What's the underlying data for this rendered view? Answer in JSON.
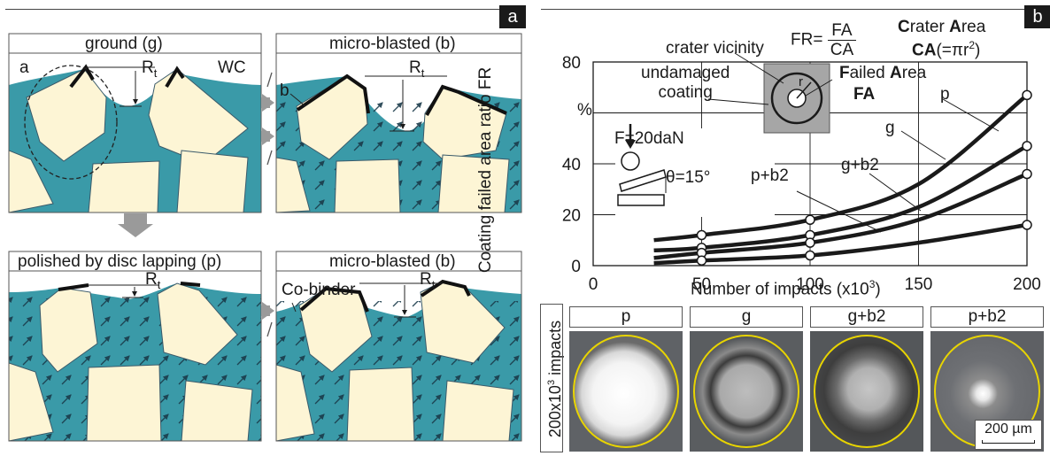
{
  "panel_a": {
    "letter": "a",
    "sub1": {
      "title": "ground (g)",
      "label_a": "a",
      "label_rt": "R",
      "label_rt_sub": "t",
      "label_wc": "WC"
    },
    "sub2": {
      "title": "micro-blasted (b)",
      "label_b": "b",
      "label_rt": "R",
      "label_rt_sub": "t"
    },
    "sub3": {
      "title": "polished by disc lapping (p)",
      "label_rt": "R",
      "label_rt_sub": "t"
    },
    "sub4": {
      "title": "micro-blasted (b)",
      "label_co": "Co-binder",
      "label_rt": "R",
      "label_rt_sub": "t"
    }
  },
  "panel_b": {
    "letter": "b",
    "formula_lhs": "FR=",
    "formula_num": "FA",
    "formula_den": "CA",
    "crater_area_c": "C",
    "crater_area_rest1": "rater ",
    "crater_area_a": "A",
    "crater_area_rest2": "rea",
    "ca_def_bold": "CA",
    "ca_def_rest": "(=πr",
    "ca_def_exp": "2",
    "ca_def_close": ")",
    "crater_vicinity": "crater vicinity",
    "undamaged_line1": "undamaged",
    "undamaged_line2": "coating",
    "failed_f": "F",
    "failed_rest1": "ailed ",
    "failed_a": "A",
    "failed_rest2": "rea",
    "fa_bold": "FA",
    "r_label": "r",
    "force": "F=20daN",
    "angle": "θ=15°",
    "side_label_main": "200x10",
    "side_label_exp": "3",
    "side_label_rest": " impacts",
    "scale_bar": "200 µm",
    "image_labels": [
      "p",
      "g",
      "g+b2",
      "p+b2"
    ]
  },
  "chart_data": {
    "type": "line",
    "title": "",
    "xlabel": "Number of impacts (x10",
    "xlabel_exp": "3",
    "xlabel_close": ")",
    "ylabel": "Coating failed area ratio FR",
    "y_unit": "%",
    "xlim": [
      0,
      200
    ],
    "ylim": [
      0,
      80
    ],
    "xticks": [
      0,
      50,
      100,
      150,
      200
    ],
    "yticks": [
      20,
      40,
      60,
      80
    ],
    "ytick_labels": [
      "20",
      "40",
      "",
      "80"
    ],
    "grid": true,
    "series": [
      {
        "name": "p",
        "x": [
          28,
          50,
          100,
          150,
          200
        ],
        "y": [
          10,
          12,
          18,
          32,
          67
        ]
      },
      {
        "name": "g",
        "x": [
          28,
          50,
          100,
          150,
          200
        ],
        "y": [
          6,
          7,
          12,
          23,
          47
        ]
      },
      {
        "name": "g+b2",
        "x": [
          28,
          50,
          100,
          150,
          200
        ],
        "y": [
          3,
          5,
          9,
          18,
          36
        ]
      },
      {
        "name": "p+b2",
        "x": [
          28,
          50,
          100,
          150,
          200
        ],
        "y": [
          1,
          2,
          4,
          9,
          16
        ]
      }
    ],
    "markers": [
      {
        "x": 50,
        "y": 12
      },
      {
        "x": 50,
        "y": 7
      },
      {
        "x": 50,
        "y": 5
      },
      {
        "x": 50,
        "y": 2
      },
      {
        "x": 100,
        "y": 18
      },
      {
        "x": 100,
        "y": 12
      },
      {
        "x": 100,
        "y": 9
      },
      {
        "x": 100,
        "y": 4
      },
      {
        "x": 200,
        "y": 67
      },
      {
        "x": 200,
        "y": 47
      },
      {
        "x": 200,
        "y": 36
      },
      {
        "x": 200,
        "y": 16
      }
    ],
    "colors": {
      "curve": "#1a1a1a",
      "marker_fill": "#ffffff"
    }
  }
}
